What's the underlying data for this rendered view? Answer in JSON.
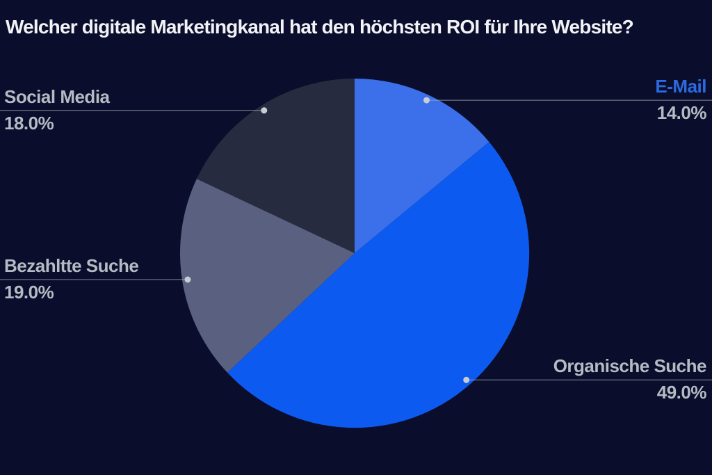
{
  "title": "Welcher digitale Marketingkanal hat den höchsten ROI für Ihre Website?",
  "colors": {
    "background": "#0a0d2b",
    "title_text": "#f2f3f6",
    "label_text": "#b6bac3",
    "accent_label_text": "#2b6ae0",
    "leader_line": "#9aa1ad",
    "leader_dot": "#c7ccd5"
  },
  "chart_data": {
    "type": "pie",
    "title": "Welcher digitale Marketingkanal hat den höchsten ROI für Ihre Website?",
    "start_angle_deg": 0,
    "direction": "clockwise",
    "legend_position": "none",
    "labels_style": "outside-callouts-with-leader-lines",
    "categories": [
      "E-Mail",
      "Organische Suche",
      "Bezahltte Suche",
      "Social Media"
    ],
    "values": [
      14.0,
      49.0,
      19.0,
      18.0
    ],
    "slices": [
      {
        "id": "email",
        "label": "E-Mail",
        "value": 14.0,
        "pct_label": "14.0%",
        "color": "#3b70ea",
        "label_color": "#2b6ae0",
        "callout_side": "right"
      },
      {
        "id": "organic-search",
        "label": "Organische Suche",
        "value": 49.0,
        "pct_label": "49.0%",
        "color": "#0d5af1",
        "callout_side": "right"
      },
      {
        "id": "paid-search",
        "label": "Bezahltte Suche",
        "value": 19.0,
        "pct_label": "19.0%",
        "color": "#596080",
        "callout_side": "left"
      },
      {
        "id": "social-media",
        "label": "Social Media",
        "value": 18.0,
        "pct_label": "18.0%",
        "color": "#272b40",
        "callout_side": "left"
      }
    ]
  }
}
